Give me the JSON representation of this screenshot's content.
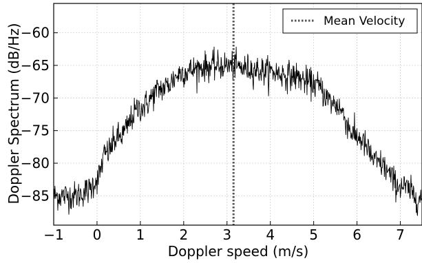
{
  "chart_data": {
    "type": "line",
    "xlabel": "Doppler speed (m/s)",
    "ylabel": "Doppler Spectrum (dB/Hz)",
    "xlim": [
      -1,
      7.5
    ],
    "ylim": [
      -89.5,
      -55.5
    ],
    "xticks": [
      -1,
      0,
      1,
      2,
      3,
      4,
      5,
      6,
      7
    ],
    "yticks": [
      -85,
      -80,
      -75,
      -70,
      -65,
      -60
    ],
    "x_tick_labels": [
      "−1",
      "0",
      "1",
      "2",
      "3",
      "4",
      "5",
      "6",
      "7"
    ],
    "y_tick_labels": [
      "−85",
      "−80",
      "−75",
      "−70",
      "−65",
      "−60"
    ],
    "grid": true,
    "legend_position": "top-right",
    "series": [
      {
        "name": "Doppler Spectrum",
        "color": "#000000",
        "noise_db": 1.1,
        "x": [
          -1.0,
          -0.5,
          -0.2,
          0.0,
          0.2,
          0.5,
          1.0,
          1.5,
          2.0,
          2.5,
          3.0,
          3.5,
          4.0,
          4.5,
          5.0,
          5.5,
          6.0,
          6.5,
          7.0,
          7.5
        ],
        "values": [
          -85.0,
          -85.0,
          -84.2,
          -82.5,
          -78.5,
          -76.0,
          -71.5,
          -68.5,
          -66.0,
          -65.2,
          -65.0,
          -65.5,
          -66.0,
          -66.6,
          -67.8,
          -71.0,
          -76.0,
          -80.0,
          -83.5,
          -85.5
        ]
      },
      {
        "name": "Mean Velocity",
        "style": "dotted",
        "color": "#555555",
        "x_value": 3.15
      }
    ],
    "legend_entries": [
      "Mean Velocity"
    ]
  }
}
